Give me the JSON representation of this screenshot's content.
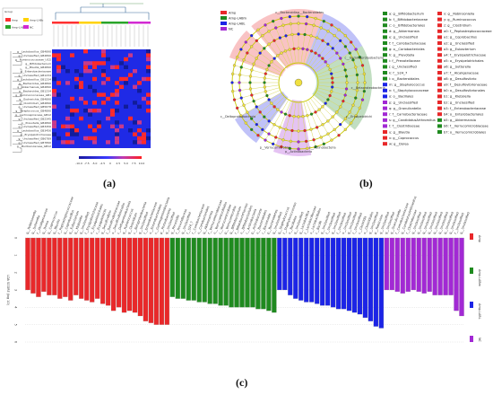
{
  "captions": {
    "a": "(a)",
    "b": "(b)",
    "c": "(c)"
  },
  "colors": {
    "red": "#e8282a",
    "green": "#1f8a1f",
    "blue": "#1c24e6",
    "purple": "#a229d4",
    "heatmap_bg": "#1f2ae6",
    "heatmap_hot": "#ff2a2a"
  },
  "heatmap": {
    "group_legend_title": "Group",
    "group_legend": [
      {
        "label": "Amp",
        "color": "#ff3030"
      },
      {
        "label": "Amp-LABc",
        "color": "#ffd200"
      },
      {
        "label": "Amp-LABL",
        "color": "#2aa52a"
      },
      {
        "label": "NC",
        "color": "#d22ad2"
      }
    ],
    "row_labels": [
      "g__Lactobacillus_GB4890",
      "g__Unclassified_GB4890",
      "g__Ruminococcaceae_UCG",
      "g__Bifidobacterium",
      "g__Blautia_GB4890",
      "g__Enterobacteriaceae",
      "g__Unclassified_GB1234",
      "g__Lactobacillus_GB1234",
      "g__Bacteroides_GB4890",
      "g__Akkermansia_GB4890",
      "g__Bacteroides_GB1234",
      "g__Ruminococcaceae_GB1",
      "g__Escherichia_GB4890",
      "g__Clostridium_GB4890",
      "g__Unclassified_GB5678",
      "g__Streptococcus_GB4890",
      "g__Lachnospiraceae_GB12",
      "g__Unclassified_GB2345",
      "g__Prevotella_GB4890",
      "g__Unclassified_GB3456",
      "g__Lactobacillus_GB3456",
      "g__Erysipelotrichaceae",
      "g__Unclassified_GB6789",
      "g__Unclassified_GB7890",
      "g__Muribaculaceae_GB12"
    ],
    "colorbar_ticks": [
      "-10.0",
      "-7.5",
      "-5.0",
      "-2.5",
      "0",
      "2.5",
      "5.0",
      "7.5",
      "10.0"
    ]
  },
  "cladogram": {
    "legend": [
      {
        "label": "Amp",
        "color": "#e8282a"
      },
      {
        "label": "Amp-LABm",
        "color": "#1f8a1f"
      },
      {
        "label": "Amp-LABL",
        "color": "#1c24e6"
      },
      {
        "label": "NC",
        "color": "#a229d4"
      }
    ],
    "taxa_col1": [
      {
        "text": "a: g__Bifidobacterium",
        "color": "#1f8a1f"
      },
      {
        "text": "b: f__Bifidobacteriaceae",
        "color": "#1f8a1f"
      },
      {
        "text": "c: o__Bifidobacteriales",
        "color": "#1f8a1f"
      },
      {
        "text": "d: g__Akkermansia",
        "color": "#1f8a1f"
      },
      {
        "text": "e: g__Unclassified",
        "color": "#1f8a1f"
      },
      {
        "text": "f: f__Coriobacteriaceae",
        "color": "#1f8a1f"
      },
      {
        "text": "g: o__Coriobacteriales",
        "color": "#1f8a1f"
      },
      {
        "text": "h: g__Prevotella",
        "color": "#1f8a1f"
      },
      {
        "text": "i: f__Prevotellaceae",
        "color": "#1f8a1f"
      },
      {
        "text": "j: g__Unclassified",
        "color": "#1f8a1f"
      },
      {
        "text": "k: f__S24_7",
        "color": "#1f8a1f"
      },
      {
        "text": "l: o__Bacteroidales",
        "color": "#1f8a1f"
      },
      {
        "text": "m: g__Staphylococcus",
        "color": "#1c24e6"
      },
      {
        "text": "n: f__Staphylococcaceae",
        "color": "#1c24e6"
      },
      {
        "text": "o: o__Bacillales",
        "color": "#1c24e6"
      },
      {
        "text": "p: g__Unclassified",
        "color": "#a229d4"
      },
      {
        "text": "q: g__Granulicatella",
        "color": "#a229d4"
      },
      {
        "text": "r: f__Carnobacteriaceae",
        "color": "#a229d4"
      },
      {
        "text": "s: g__CandidatusArthromitus",
        "color": "#a229d4"
      },
      {
        "text": "t: f__Clostridiaceae",
        "color": "#a229d4"
      },
      {
        "text": "u: g__Blautia",
        "color": "#e8282a"
      },
      {
        "text": "v: g__Coprococcus",
        "color": "#e8282a"
      },
      {
        "text": "w: g__Dorea",
        "color": "#e8282a"
      }
    ],
    "taxa_col2": [
      {
        "text": "x: g__Robinsoniella",
        "color": "#e8282a"
      },
      {
        "text": "y: g__Ruminococcus",
        "color": "#e8282a"
      },
      {
        "text": "z: g__Clostridium",
        "color": "#e8282a"
      },
      {
        "text": "a0: f__Peptostreptococcaceae",
        "color": "#e8282a"
      },
      {
        "text": "a1: g__Coprobacillus",
        "color": "#e8282a"
      },
      {
        "text": "a2: g__Unclassified",
        "color": "#e8282a"
      },
      {
        "text": "a3: g__Eubacterium",
        "color": "#e8282a"
      },
      {
        "text": "a4: f__Erysipelotrichaceae",
        "color": "#e8282a"
      },
      {
        "text": "a5: o__Erysipelotrichales",
        "color": "#e8282a"
      },
      {
        "text": "a6: g__Sutterella",
        "color": "#e8282a"
      },
      {
        "text": "a7: f__Alcaligenaceae",
        "color": "#e8282a"
      },
      {
        "text": "a8: g__Desulfovibrio",
        "color": "#e8282a"
      },
      {
        "text": "a9: f__Desulfovibrionaceae",
        "color": "#e8282a"
      },
      {
        "text": "b0: o__Desulfovibrionales",
        "color": "#e8282a"
      },
      {
        "text": "b1: g__Klebsiella",
        "color": "#e8282a"
      },
      {
        "text": "b2: g__Unclassified",
        "color": "#e8282a"
      },
      {
        "text": "b3: f__Enterobacteriaceae",
        "color": "#e8282a"
      },
      {
        "text": "b4: o__Enterobacteriales",
        "color": "#e8282a"
      },
      {
        "text": "b5: g__Akkermansia",
        "color": "#1f8a1f"
      },
      {
        "text": "b6: f__Verrucomicrobiaceae",
        "color": "#1f8a1f"
      },
      {
        "text": "b7: o__Verrucomicrobiales",
        "color": "#1f8a1f"
      }
    ],
    "ring_labels": [
      {
        "text": "c__Bacteroidia",
        "color": "#1f8a1f"
      },
      {
        "text": "p__Bacteroidetes",
        "color": "#1f8a1f"
      },
      {
        "text": "c__Gammaproteobacteria",
        "color": "#e8282a"
      },
      {
        "text": "c__Betaproteobacteria",
        "color": "#e8282a"
      },
      {
        "text": "c__Erysipelotrichi",
        "color": "#e8282a"
      },
      {
        "text": "c__Deltaproteobacteria",
        "color": "#e8282a"
      },
      {
        "text": "p__Verrucomicrobia",
        "color": "#1f8a1f"
      },
      {
        "text": "c__Actinobacteria",
        "color": "#1f8a1f"
      },
      {
        "text": "p__Actinobacteria",
        "color": "#1f8a1f"
      }
    ]
  },
  "lefse": {
    "ylabel": "LDA SCORE (log 10)",
    "yticks": [
      "0",
      "1",
      "2",
      "3",
      "4",
      "5",
      "6"
    ],
    "legend": [
      {
        "label": "Amp",
        "color": "#e8282a"
      },
      {
        "label": "Amp-LABm",
        "color": "#1f8a1f"
      },
      {
        "label": "Amp-LABL",
        "color": "#1c24e6"
      },
      {
        "label": "NC",
        "color": "#a229d4"
      }
    ],
    "groups": [
      {
        "group": "Amp",
        "color": "#e8282a",
        "values": [
          3.0,
          3.2,
          3.4,
          3.1,
          3.3,
          3.3,
          3.5,
          3.4,
          3.6,
          3.3,
          3.5,
          3.6,
          3.7,
          3.5,
          3.8,
          3.9,
          4.2,
          4.0,
          4.3,
          4.2,
          4.3,
          4.5,
          4.8,
          4.9,
          5.0,
          5.0,
          5.0
        ],
        "labels": [
          "g__Robinsoniella",
          "g__Sutterella",
          "f__Alcaligenaceae",
          "g__Dorea",
          "g__Coprococcus",
          "g__Blautia",
          "f__Peptostreptococcaceae",
          "g__Coprobacillus",
          "g__Eubacterium",
          "g__Klebsiella",
          "g__Unclassified",
          "f__Erysipelotrichaceae",
          "o__Erysipelotrichales",
          "c__Erysipelotrichi",
          "g__Desulfovibrio",
          "f__Desulfovibrionaceae",
          "o__Desulfovibrionales",
          "c__Deltaproteobacteria",
          "g__Ruminococcus",
          "g__Clostridium",
          "c__Betaproteobacteria",
          "g__Unclassified",
          "f__Enterobacteriaceae",
          "o__Enterobacteriales",
          "c__Gammaproteobacteria",
          "p__Proteobacteria",
          "g__Unclassified"
        ]
      },
      {
        "group": "Amp-LABm",
        "color": "#1f8a1f",
        "values": [
          3.4,
          3.5,
          3.5,
          3.6,
          3.6,
          3.7,
          3.7,
          3.8,
          3.8,
          3.9,
          3.9,
          4.0,
          4.0,
          4.0,
          4.0,
          4.0,
          4.1,
          4.1,
          4.2,
          4.3
        ],
        "labels": [
          "g__Prevotella",
          "f__Prevotellaceae",
          "g__Unclassified",
          "f__S24_7",
          "f__Coriobacteriaceae",
          "o__Coriobacteriales",
          "g__Akkermansia",
          "f__Verrucomicrobiaceae",
          "o__Verrucomicrobiales",
          "c__Verrucomicrobiae",
          "p__Verrucomicrobia",
          "g__Bifidobacterium",
          "f__Bifidobacteriaceae",
          "o__Bifidobacteriales",
          "c__Actinobacteria",
          "p__Actinobacteria",
          "o__Bacteroidales",
          "c__Bacteroidia",
          "p__Bacteroidetes",
          "g__Unclassified"
        ]
      },
      {
        "group": "Amp-LABL",
        "color": "#1c24e6",
        "values": [
          3.0,
          3.0,
          3.3,
          3.5,
          3.6,
          3.7,
          3.7,
          3.8,
          3.9,
          3.9,
          4.0,
          4.1,
          4.1,
          4.2,
          4.3,
          4.4,
          4.6,
          4.8,
          5.1,
          5.2
        ],
        "labels": [
          "g__Staphylococcus",
          "f__Staphylococcaceae",
          "o__Bacillales",
          "g__Unclassified",
          "g__Lactobacillus",
          "f__Lactobacillaceae",
          "o__Lactobacillales",
          "c__Bacilli",
          "g__Unclassified",
          "f__Unclassified",
          "g__Unclassified",
          "f__Unclassified",
          "o__Unclassified",
          "g__Unclassified",
          "f__Unclassified",
          "c__Clostridia",
          "o__Clostridiales",
          "g__Unclassified",
          "p__Firmicutes",
          "g__Unclassified"
        ]
      },
      {
        "group": "NC",
        "color": "#a229d4",
        "values": [
          3.0,
          3.0,
          3.1,
          3.2,
          3.1,
          3.0,
          3.1,
          3.2,
          3.1,
          3.3,
          3.3,
          3.3,
          3.3,
          4.2,
          4.5
        ],
        "labels": [
          "g__Unclassified",
          "g__Granulicatella",
          "f__Carnobacteriaceae",
          "g__CandidatusArthromitus",
          "f__Clostridiaceae",
          "g__Unclassified",
          "g__Unclassified",
          "g__Unclassified",
          "g__Unclassified",
          "g__Unclassified",
          "g__Unclassified",
          "g__Unclassified",
          "g__Unclassified",
          "f__Unclassified",
          "g__Unclassified"
        ]
      }
    ]
  }
}
